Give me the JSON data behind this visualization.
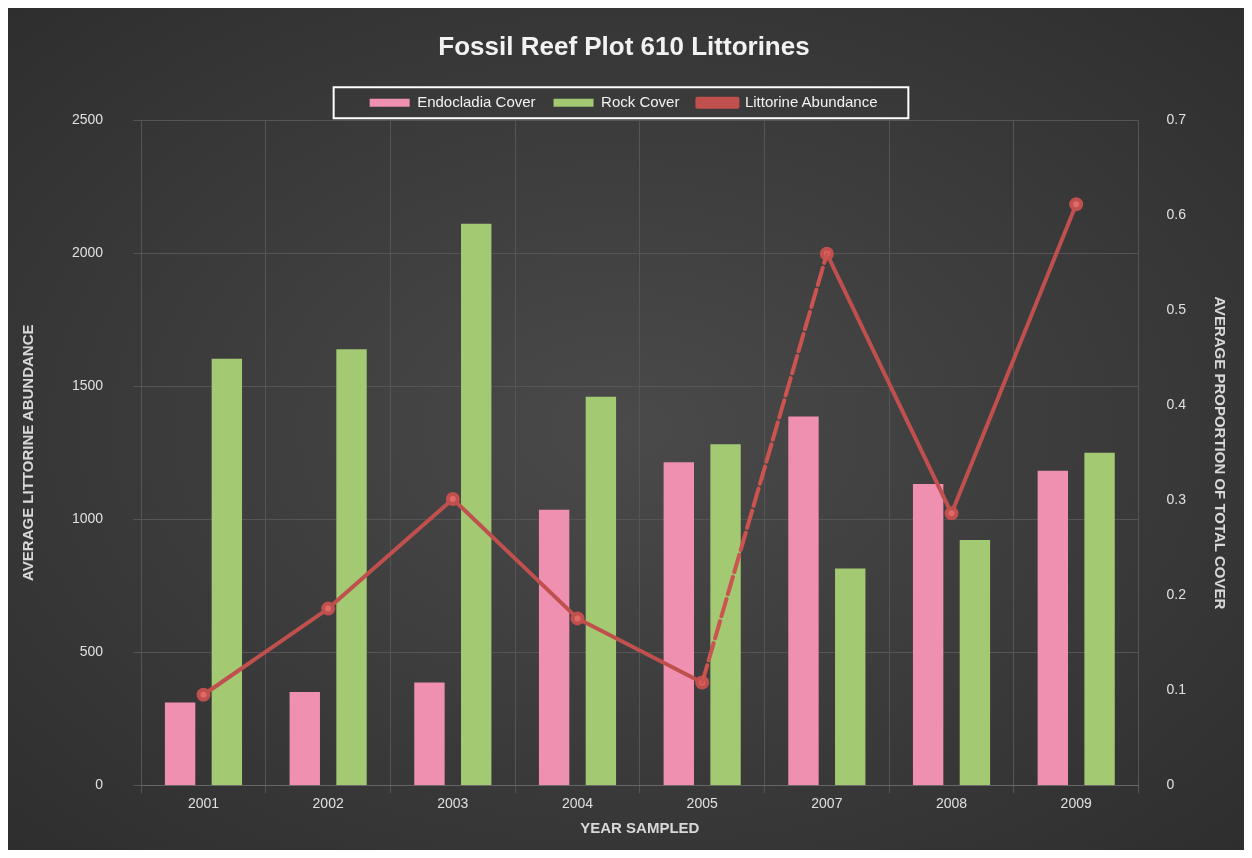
{
  "chart_data": {
    "type": "bar",
    "title": "Fossil Reef Plot 610 Littorines",
    "xlabel": "YEAR SAMPLED",
    "ylabel": "AVERAGE LITTORINE ABUNDANCE",
    "y2label": "AVERAGE PROPORTION OF TOTAL COVER",
    "categories": [
      "2001",
      "2002",
      "2003",
      "2004",
      "2005",
      "2007",
      "2008",
      "2009"
    ],
    "series": [
      {
        "name": "Endocladia Cover",
        "color": "#f090b0",
        "axis": "y2",
        "values": [
          0.087,
          0.098,
          0.108,
          0.29,
          0.34,
          0.388,
          0.317,
          0.331
        ]
      },
      {
        "name": "Rock Cover",
        "color": "#a3c973",
        "axis": "y2",
        "values": [
          0.449,
          0.459,
          0.591,
          0.409,
          0.359,
          0.228,
          0.258,
          0.35
        ]
      },
      {
        "name": "Littorine Abundance",
        "type": "line",
        "color": "#c0504d",
        "axis": "y",
        "marker": "circle",
        "line_style": "solid",
        "values": [
          340,
          664,
          1076,
          627,
          386,
          1998,
          1022,
          2184
        ]
      },
      {
        "type": "line",
        "color": "#cc5450",
        "axis": "y",
        "marker": "none",
        "line_style": "dashed",
        "values": [
          null,
          null,
          null,
          null,
          386,
          1998,
          null,
          null
        ]
      }
    ],
    "ylim": [
      0,
      2500
    ],
    "yticks": [
      0,
      500,
      1000,
      1500,
      2000,
      2500
    ],
    "y2lim": [
      0,
      0.7
    ],
    "y2ticks": [
      0,
      0.1,
      0.2,
      0.3,
      0.4,
      0.5,
      0.6,
      0.7
    ],
    "grid": true,
    "legend": "top"
  }
}
